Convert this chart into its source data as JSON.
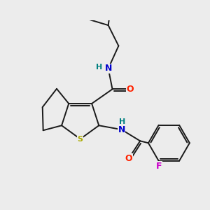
{
  "background_color": "#ececec",
  "bond_color": "#1a1a1a",
  "atom_colors": {
    "N": "#0000cc",
    "O": "#ff2200",
    "S": "#aaaa00",
    "F": "#cc00cc",
    "H": "#008080",
    "C": "#1a1a1a"
  },
  "figsize": [
    3.0,
    3.0
  ],
  "dpi": 100
}
